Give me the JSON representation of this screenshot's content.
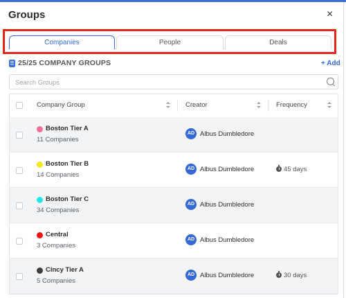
{
  "dialog": {
    "title": "Groups",
    "close_label": "×"
  },
  "tabs": [
    {
      "label": "Companies",
      "active": true
    },
    {
      "label": "People",
      "active": false
    },
    {
      "label": "Deals",
      "active": false
    }
  ],
  "toolbar": {
    "count_label": "25/25 COMPANY GROUPS",
    "add_label": "+ Add"
  },
  "search": {
    "placeholder": "Search Groups",
    "value": ""
  },
  "table": {
    "headers": {
      "group": "Company Group",
      "creator": "Creator",
      "frequency": "Frequency"
    },
    "rows": [
      {
        "name": "Boston Tier A",
        "count": "11 Companies",
        "color": "#f36f9a",
        "creator_initials": "AD",
        "creator": "Albus Dumbledore",
        "frequency": ""
      },
      {
        "name": "Boston Tier B",
        "count": "14 Companies",
        "color": "#f5e81c",
        "creator_initials": "AD",
        "creator": "Albus Dumbledore",
        "frequency": "45 days"
      },
      {
        "name": "Boston Tier C",
        "count": "34 Companies",
        "color": "#22e6e6",
        "creator_initials": "AD",
        "creator": "Albus Dumbledore",
        "frequency": ""
      },
      {
        "name": "Central",
        "count": "3 Companies",
        "color": "#f0130f",
        "creator_initials": "AD",
        "creator": "Albus Dumbledore",
        "frequency": ""
      },
      {
        "name": "Cincy Tier A",
        "count": "5 Companies",
        "color": "#3d3d3d",
        "creator_initials": "AD",
        "creator": "Albus Dumbledore",
        "frequency": "30 days"
      }
    ]
  },
  "colors": {
    "accent": "#3468d6",
    "highlight_outline": "#e8241c"
  }
}
